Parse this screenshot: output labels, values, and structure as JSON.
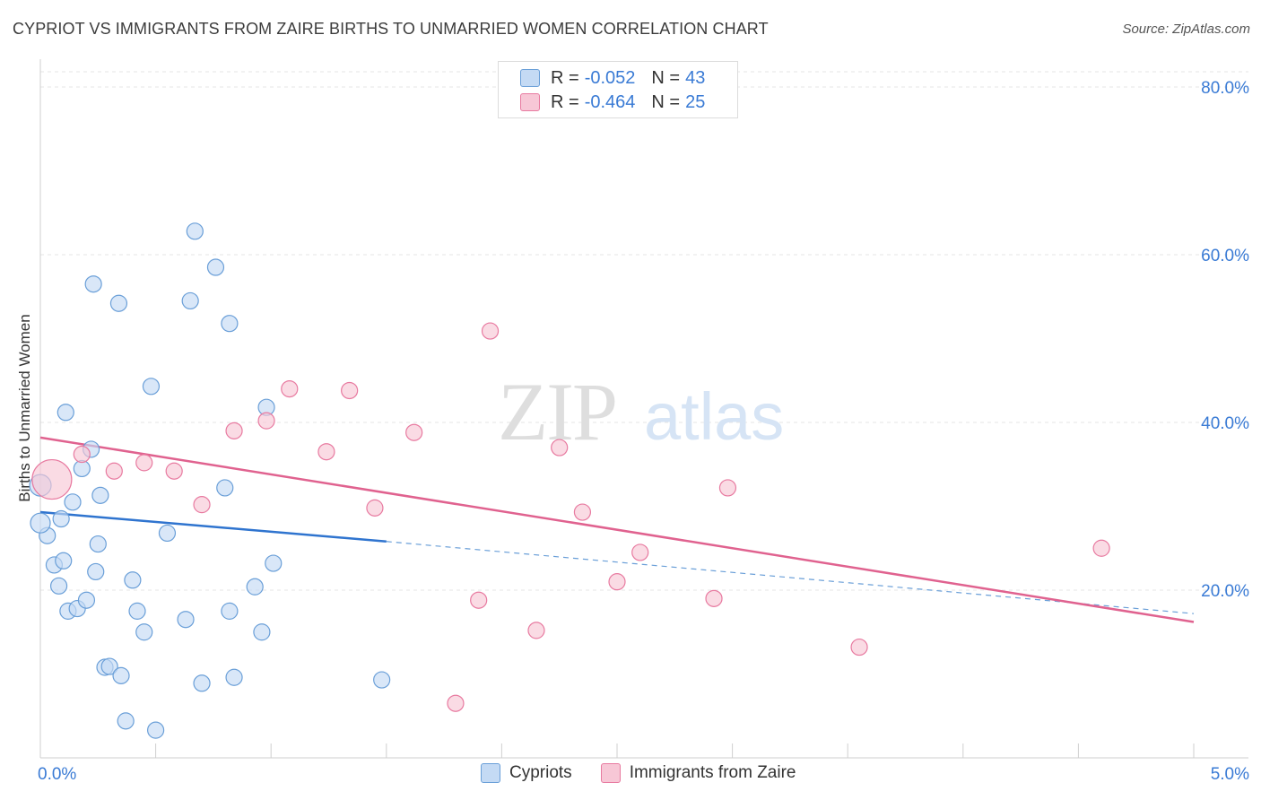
{
  "title": "CYPRIOT VS IMMIGRANTS FROM ZAIRE BIRTHS TO UNMARRIED WOMEN CORRELATION CHART",
  "source": "Source: ZipAtlas.com",
  "watermark": {
    "zip": "ZIP",
    "atlas": "atlas"
  },
  "legend_top": {
    "rows": [
      {
        "r_label": "R =",
        "r_value": "-0.052",
        "n_label": "N =",
        "n_value": "43"
      },
      {
        "r_label": "R =",
        "r_value": "-0.464",
        "n_label": "N =",
        "n_value": "25"
      }
    ]
  },
  "chart_data": {
    "type": "scatter",
    "ylabel": "Births to Unmarried Women",
    "xlim": [
      0,
      5
    ],
    "ylim": [
      0,
      80
    ],
    "x_tick_labels": [
      "0.0%",
      "5.0%"
    ],
    "y_tick_labels": [
      "20.0%",
      "40.0%",
      "60.0%",
      "80.0%"
    ],
    "y_ticks": [
      20,
      40,
      60,
      80
    ],
    "grid": true,
    "legend_position": "top-center",
    "series": [
      {
        "name": "Cypriots",
        "color": "#6a9fd8",
        "fill": "#c4daf4",
        "points": [
          [
            0.0,
            32.5
          ],
          [
            0.03,
            26.5
          ],
          [
            0.06,
            23.0
          ],
          [
            0.08,
            20.5
          ],
          [
            0.1,
            23.5
          ],
          [
            0.09,
            28.5
          ],
          [
            0.11,
            41.2
          ],
          [
            0.12,
            17.5
          ],
          [
            0.14,
            30.5
          ],
          [
            0.16,
            17.8
          ],
          [
            0.18,
            34.5
          ],
          [
            0.2,
            18.8
          ],
          [
            0.22,
            36.8
          ],
          [
            0.23,
            56.5
          ],
          [
            0.24,
            22.2
          ],
          [
            0.25,
            25.5
          ],
          [
            0.26,
            31.3
          ],
          [
            0.28,
            10.8
          ],
          [
            0.3,
            10.9
          ],
          [
            0.34,
            54.2
          ],
          [
            0.35,
            9.8
          ],
          [
            0.37,
            4.4
          ],
          [
            0.4,
            21.2
          ],
          [
            0.42,
            17.5
          ],
          [
            0.45,
            15.0
          ],
          [
            0.48,
            44.3
          ],
          [
            0.5,
            3.3
          ],
          [
            0.55,
            26.8
          ],
          [
            0.63,
            16.5
          ],
          [
            0.65,
            54.5
          ],
          [
            0.67,
            62.8
          ],
          [
            0.7,
            8.9
          ],
          [
            0.76,
            58.5
          ],
          [
            0.8,
            32.2
          ],
          [
            0.82,
            51.8
          ],
          [
            0.82,
            17.5
          ],
          [
            0.84,
            9.6
          ],
          [
            0.93,
            20.4
          ],
          [
            0.96,
            15.0
          ],
          [
            0.98,
            41.8
          ],
          [
            1.01,
            23.2
          ],
          [
            1.48,
            9.3
          ],
          [
            0.0,
            28.0
          ]
        ],
        "trend": {
          "x0": 0.0,
          "y0": 29.3,
          "x1": 1.5,
          "y1": 25.8,
          "x_dash_end": 5.0,
          "y_dash_end": 17.2
        }
      },
      {
        "name": "Immigrants from Zaire",
        "color": "#e87aa0",
        "fill": "#f7c7d6",
        "points": [
          [
            0.05,
            33.2
          ],
          [
            0.18,
            36.2
          ],
          [
            0.32,
            34.2
          ],
          [
            0.45,
            35.2
          ],
          [
            0.58,
            34.2
          ],
          [
            0.7,
            30.2
          ],
          [
            0.84,
            39.0
          ],
          [
            0.98,
            40.2
          ],
          [
            1.08,
            44.0
          ],
          [
            1.24,
            36.5
          ],
          [
            1.34,
            43.8
          ],
          [
            1.45,
            29.8
          ],
          [
            1.62,
            38.8
          ],
          [
            1.8,
            6.5
          ],
          [
            1.9,
            18.8
          ],
          [
            1.95,
            50.9
          ],
          [
            2.15,
            15.2
          ],
          [
            2.25,
            37.0
          ],
          [
            2.35,
            29.3
          ],
          [
            2.5,
            21.0
          ],
          [
            2.6,
            24.5
          ],
          [
            2.92,
            19.0
          ],
          [
            2.98,
            32.2
          ],
          [
            3.55,
            13.2
          ],
          [
            4.6,
            25.0
          ]
        ],
        "trend": {
          "x0": 0.0,
          "y0": 38.2,
          "x1": 5.0,
          "y1": 16.2
        }
      }
    ]
  }
}
